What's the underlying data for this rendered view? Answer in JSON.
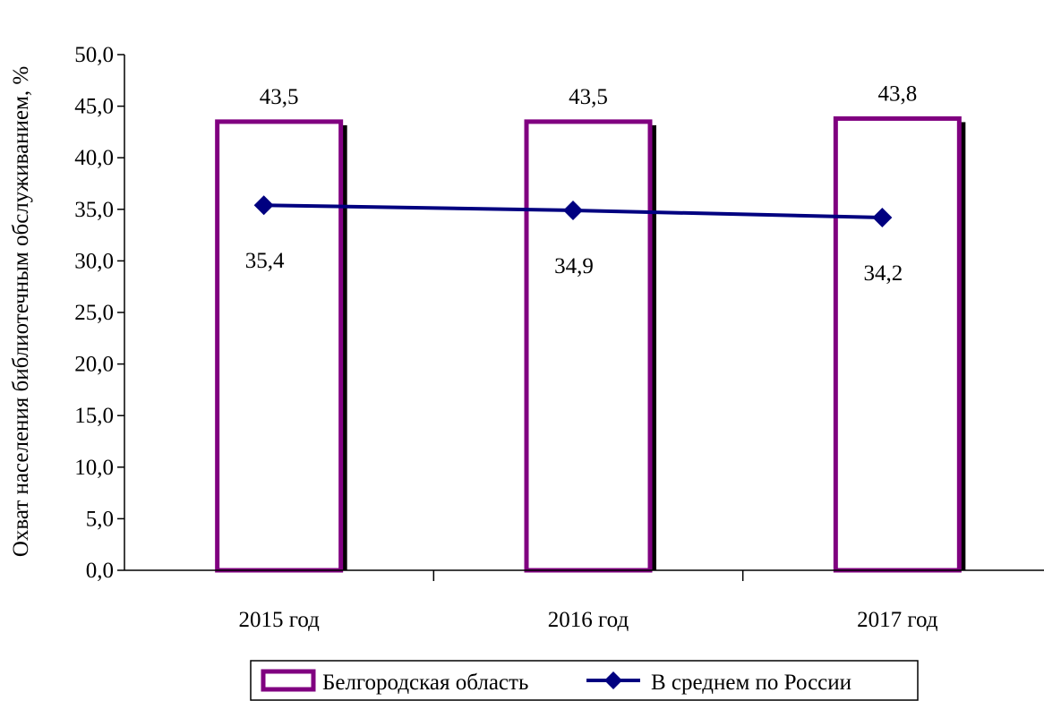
{
  "chart_data": {
    "type": "bar",
    "title": "",
    "xlabel": "",
    "ylabel": "Охват населения библиотечным обслуживанием, %",
    "ylim": [
      0,
      50
    ],
    "ytick_step": 5,
    "ytick_labels": [
      "0,0",
      "5,0",
      "10,0",
      "15,0",
      "20,0",
      "25,0",
      "30,0",
      "35,0",
      "40,0",
      "45,0",
      "50,0"
    ],
    "categories": [
      "2015 год",
      "2016 год",
      "2017 год"
    ],
    "grid": false,
    "legend_position": "bottom",
    "series": [
      {
        "name": "Белгородская область",
        "type": "bar",
        "values": [
          43.5,
          43.5,
          43.8
        ],
        "labels": [
          "43,5",
          "43,5",
          "43,8"
        ],
        "color": "#800080"
      },
      {
        "name": "В среднем по России",
        "type": "line",
        "marker": "diamond",
        "values": [
          35.4,
          34.9,
          34.2
        ],
        "labels": [
          "35,4",
          "34,9",
          "34,2"
        ],
        "color": "#000080"
      }
    ]
  }
}
